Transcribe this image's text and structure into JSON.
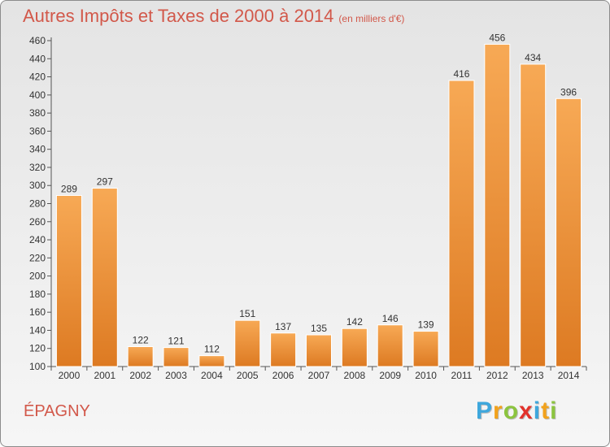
{
  "title": "Autres Impôts et Taxes de 2000 à 2014",
  "subtitle": "(en milliers d'€)",
  "commune": "ÉPAGNY",
  "logo_text": "Proxiti",
  "colors": {
    "bar_light": "#f7a955",
    "bar_dark": "#dd7a22",
    "title": "#d2584a",
    "axis": "#555555"
  },
  "chart_data": {
    "type": "bar",
    "title": "Autres Impôts et Taxes de 2000 à 2014",
    "subtitle": "(en milliers d'€)",
    "categories": [
      "2000",
      "2001",
      "2002",
      "2003",
      "2004",
      "2005",
      "2006",
      "2007",
      "2008",
      "2009",
      "2010",
      "2011",
      "2012",
      "2013",
      "2014"
    ],
    "values": [
      289,
      297,
      122,
      121,
      112,
      151,
      137,
      135,
      142,
      146,
      139,
      416,
      456,
      434,
      396
    ],
    "ylim": [
      100,
      460
    ],
    "yticks": [
      100,
      120,
      140,
      160,
      180,
      200,
      220,
      240,
      260,
      280,
      300,
      320,
      340,
      360,
      380,
      400,
      420,
      440,
      460
    ],
    "grid": false,
    "legend": "none"
  }
}
